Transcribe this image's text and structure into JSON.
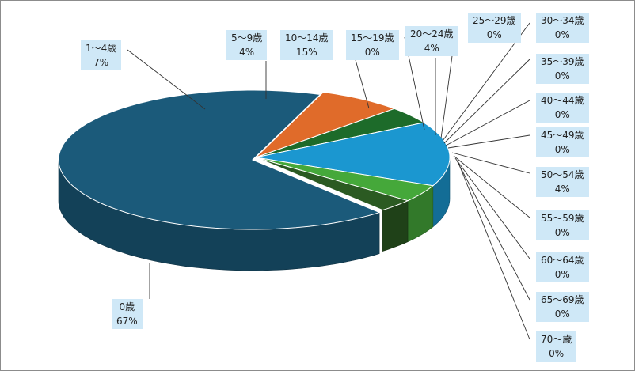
{
  "chart_data": {
    "type": "pie",
    "style": "3d-exploded-first-slice",
    "title": "",
    "colors_note": "series colors listed per slice",
    "slices": [
      {
        "label": "0歳",
        "value": 67,
        "pct": "67%",
        "color": "#1b5a7a"
      },
      {
        "label": "1～4歳",
        "value": 7,
        "pct": "7%",
        "color": "#e06b2a"
      },
      {
        "label": "5～9歳",
        "value": 4,
        "pct": "4%",
        "color": "#1d6b2a"
      },
      {
        "label": "10～14歳",
        "value": 15,
        "pct": "15%",
        "color": "#1b97d0"
      },
      {
        "label": "15～19歳",
        "value": 0,
        "pct": "0%",
        "color": "#3d8fd6"
      },
      {
        "label": "20～24歳",
        "value": 4,
        "pct": "4%",
        "color": "#45a83a"
      },
      {
        "label": "25～29歳",
        "value": 0,
        "pct": "0%",
        "color": "#7ab648"
      },
      {
        "label": "30～34歳",
        "value": 0,
        "pct": "0%",
        "color": "#96c47d"
      },
      {
        "label": "35～39歳",
        "value": 0,
        "pct": "0%",
        "color": "#5a8f3a"
      },
      {
        "label": "40～44歳",
        "value": 0,
        "pct": "0%",
        "color": "#2e7d32"
      },
      {
        "label": "45～49歳",
        "value": 0,
        "pct": "0%",
        "color": "#276b2b"
      },
      {
        "label": "50～54歳",
        "value": 4,
        "pct": "4%",
        "color": "#2b5a22"
      },
      {
        "label": "55～59歳",
        "value": 0,
        "pct": "0%",
        "color": "#3e6e2a"
      },
      {
        "label": "60～64歳",
        "value": 0,
        "pct": "0%",
        "color": "#1f4d1c"
      },
      {
        "label": "65～69歳",
        "value": 0,
        "pct": "0%",
        "color": "#2f5e2a"
      },
      {
        "label": "70～歳",
        "value": 0,
        "pct": "0%",
        "color": "#204a20"
      }
    ]
  }
}
